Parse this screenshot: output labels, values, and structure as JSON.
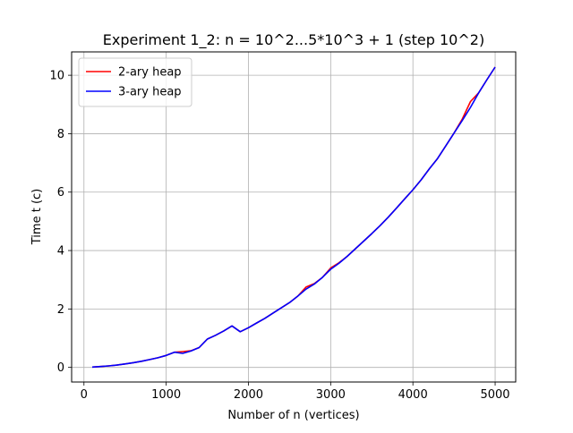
{
  "chart_data": {
    "type": "line",
    "title": "Experiment 1_2: n = 10^2...5*10^3 + 1 (step 10^2)",
    "xlabel": "Number of n (vertices)",
    "ylabel": "Time t (c)",
    "xlim": [
      -150,
      5250
    ],
    "ylim": [
      -0.5,
      10.8
    ],
    "xticks": [
      0,
      1000,
      2000,
      3000,
      4000,
      5000
    ],
    "yticks": [
      0,
      2,
      4,
      6,
      8,
      10
    ],
    "grid": true,
    "legend_position": "upper-left",
    "x": [
      100,
      200,
      300,
      400,
      500,
      600,
      700,
      800,
      900,
      1000,
      1100,
      1200,
      1300,
      1400,
      1500,
      1600,
      1700,
      1800,
      1900,
      2000,
      2100,
      2200,
      2300,
      2400,
      2500,
      2600,
      2700,
      2800,
      2900,
      3000,
      3100,
      3200,
      3300,
      3400,
      3500,
      3600,
      3700,
      3800,
      3900,
      4000,
      4100,
      4200,
      4300,
      4400,
      4500,
      4600,
      4700,
      4800,
      4900,
      5000
    ],
    "series": [
      {
        "name": "2-ary heap",
        "color": "#ff0000",
        "values": [
          0.01,
          0.03,
          0.05,
          0.08,
          0.12,
          0.16,
          0.21,
          0.27,
          0.33,
          0.41,
          0.52,
          0.54,
          0.57,
          0.68,
          0.97,
          1.1,
          1.25,
          1.42,
          1.22,
          1.36,
          1.52,
          1.68,
          1.86,
          2.04,
          2.22,
          2.44,
          2.75,
          2.87,
          3.08,
          3.4,
          3.58,
          3.8,
          4.06,
          4.32,
          4.58,
          4.85,
          5.14,
          5.45,
          5.77,
          6.08,
          6.42,
          6.8,
          7.15,
          7.58,
          8.02,
          8.5,
          9.1,
          9.4,
          9.85,
          10.28
        ]
      },
      {
        "name": "3-ary heap",
        "color": "#0000ff",
        "values": [
          0.01,
          0.03,
          0.05,
          0.08,
          0.12,
          0.16,
          0.21,
          0.27,
          0.33,
          0.41,
          0.52,
          0.48,
          0.56,
          0.68,
          0.97,
          1.1,
          1.25,
          1.42,
          1.22,
          1.36,
          1.52,
          1.68,
          1.86,
          2.04,
          2.22,
          2.44,
          2.68,
          2.85,
          3.08,
          3.36,
          3.56,
          3.8,
          4.06,
          4.32,
          4.58,
          4.85,
          5.14,
          5.45,
          5.77,
          6.08,
          6.42,
          6.8,
          7.15,
          7.58,
          8.02,
          8.45,
          8.9,
          9.4,
          9.85,
          10.28
        ]
      }
    ]
  }
}
